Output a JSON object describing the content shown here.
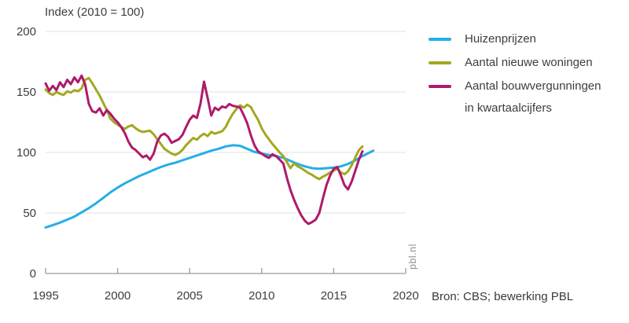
{
  "watermark": "pbl.nl",
  "source": "Bron: CBS; bewerking PBL",
  "colors": {
    "grid": "#e2e2e2",
    "axis": "#9c9c9c",
    "label": "#3d3d3d",
    "watermark": "#8f8f8f"
  },
  "chart_data": {
    "type": "line",
    "title": "Index (2010 = 100)",
    "xlabel": "",
    "ylabel": "",
    "xlim": [
      1995,
      2020
    ],
    "ylim": [
      0,
      200
    ],
    "x_ticks": [
      1995,
      2000,
      2005,
      2010,
      2015,
      2020
    ],
    "y_ticks": [
      0,
      50,
      100,
      150,
      200
    ],
    "grid": "horizontal",
    "legend_position": "right",
    "series": [
      {
        "name": "Huizenprijzen",
        "color": "#25aee6",
        "points": [
          [
            1995,
            38
          ],
          [
            1995.5,
            40
          ],
          [
            1996,
            42
          ],
          [
            1996.5,
            44.5
          ],
          [
            1997,
            47
          ],
          [
            1997.5,
            50.5
          ],
          [
            1998,
            54
          ],
          [
            1998.5,
            58
          ],
          [
            1999,
            62.5
          ],
          [
            1999.5,
            67
          ],
          [
            2000,
            71
          ],
          [
            2000.5,
            74.5
          ],
          [
            2001,
            77.5
          ],
          [
            2001.5,
            80.5
          ],
          [
            2002,
            83
          ],
          [
            2002.5,
            85.5
          ],
          [
            2003,
            88
          ],
          [
            2003.5,
            90
          ],
          [
            2004,
            91.5
          ],
          [
            2004.5,
            93.5
          ],
          [
            2005,
            95.5
          ],
          [
            2005.5,
            97.5
          ],
          [
            2006,
            99.5
          ],
          [
            2006.5,
            101.5
          ],
          [
            2007,
            103
          ],
          [
            2007.5,
            105
          ],
          [
            2008,
            106
          ],
          [
            2008.5,
            105.5
          ],
          [
            2009,
            103
          ],
          [
            2009.5,
            100.5
          ],
          [
            2010,
            99
          ],
          [
            2010.5,
            98
          ],
          [
            2011,
            97
          ],
          [
            2011.5,
            95.5
          ],
          [
            2012,
            93
          ],
          [
            2012.5,
            90.5
          ],
          [
            2013,
            88.5
          ],
          [
            2013.5,
            87
          ],
          [
            2014,
            86.5
          ],
          [
            2014.5,
            87
          ],
          [
            2015,
            87.5
          ],
          [
            2015.5,
            88.5
          ],
          [
            2016,
            90.5
          ],
          [
            2016.5,
            93.5
          ],
          [
            2017,
            97
          ],
          [
            2017.5,
            100
          ],
          [
            2017.75,
            101.5
          ]
        ]
      },
      {
        "name": "Aantal nieuwe woningen",
        "color": "#a3a820",
        "points": [
          [
            1995,
            152
          ],
          [
            1995.25,
            149
          ],
          [
            1995.5,
            147.5
          ],
          [
            1995.75,
            150
          ],
          [
            1996,
            148.5
          ],
          [
            1996.25,
            147.5
          ],
          [
            1996.5,
            150.5
          ],
          [
            1996.75,
            149.5
          ],
          [
            1997,
            151.5
          ],
          [
            1997.25,
            150.5
          ],
          [
            1997.5,
            153
          ],
          [
            1997.75,
            160
          ],
          [
            1998,
            161.5
          ],
          [
            1998.25,
            157
          ],
          [
            1998.5,
            152
          ],
          [
            1998.75,
            147
          ],
          [
            1999,
            141
          ],
          [
            1999.25,
            135
          ],
          [
            1999.5,
            128
          ],
          [
            1999.75,
            125
          ],
          [
            2000,
            123
          ],
          [
            2000.25,
            121
          ],
          [
            2000.5,
            119.5
          ],
          [
            2000.75,
            121.5
          ],
          [
            2001,
            122.5
          ],
          [
            2001.25,
            120
          ],
          [
            2001.5,
            118
          ],
          [
            2001.75,
            117
          ],
          [
            2002,
            117.5
          ],
          [
            2002.25,
            118
          ],
          [
            2002.5,
            115
          ],
          [
            2002.75,
            111
          ],
          [
            2003,
            107
          ],
          [
            2003.25,
            103
          ],
          [
            2003.5,
            101
          ],
          [
            2003.75,
            99
          ],
          [
            2004,
            98
          ],
          [
            2004.25,
            99.5
          ],
          [
            2004.5,
            102
          ],
          [
            2004.75,
            106
          ],
          [
            2005,
            109
          ],
          [
            2005.25,
            112
          ],
          [
            2005.5,
            110.5
          ],
          [
            2005.75,
            113.5
          ],
          [
            2006,
            115.5
          ],
          [
            2006.25,
            113.5
          ],
          [
            2006.5,
            117
          ],
          [
            2006.75,
            115.5
          ],
          [
            2007,
            116.5
          ],
          [
            2007.25,
            117.5
          ],
          [
            2007.5,
            121
          ],
          [
            2007.75,
            127
          ],
          [
            2008,
            132
          ],
          [
            2008.25,
            136
          ],
          [
            2008.5,
            139
          ],
          [
            2008.75,
            137
          ],
          [
            2009,
            139.5
          ],
          [
            2009.25,
            137.5
          ],
          [
            2009.5,
            132
          ],
          [
            2009.75,
            127
          ],
          [
            2010,
            120
          ],
          [
            2010.25,
            115
          ],
          [
            2010.5,
            111
          ],
          [
            2010.75,
            107
          ],
          [
            2011,
            103.5
          ],
          [
            2011.25,
            100
          ],
          [
            2011.5,
            97
          ],
          [
            2011.75,
            92
          ],
          [
            2012,
            87
          ],
          [
            2012.25,
            91
          ],
          [
            2012.5,
            88.5
          ],
          [
            2012.75,
            87
          ],
          [
            2013,
            85
          ],
          [
            2013.25,
            83
          ],
          [
            2013.5,
            81.5
          ],
          [
            2013.75,
            79.5
          ],
          [
            2014,
            78
          ],
          [
            2014.25,
            80
          ],
          [
            2014.5,
            81.5
          ],
          [
            2014.75,
            83.5
          ],
          [
            2015,
            85
          ],
          [
            2015.25,
            86.5
          ],
          [
            2015.5,
            83.5
          ],
          [
            2015.75,
            82
          ],
          [
            2016,
            84.5
          ],
          [
            2016.25,
            89.5
          ],
          [
            2016.5,
            96
          ],
          [
            2016.75,
            102
          ],
          [
            2017,
            105
          ]
        ]
      },
      {
        "name": "Aantal bouwvergunningen",
        "name_line2": "in kwartaalcijfers",
        "color": "#af1a6b",
        "points": [
          [
            1995,
            157
          ],
          [
            1995.25,
            151
          ],
          [
            1995.5,
            155
          ],
          [
            1995.75,
            151.5
          ],
          [
            1996,
            158
          ],
          [
            1996.25,
            154
          ],
          [
            1996.5,
            160
          ],
          [
            1996.75,
            156.5
          ],
          [
            1997,
            162
          ],
          [
            1997.25,
            158
          ],
          [
            1997.5,
            163.5
          ],
          [
            1997.75,
            156
          ],
          [
            1998,
            140
          ],
          [
            1998.25,
            134
          ],
          [
            1998.5,
            133
          ],
          [
            1998.75,
            136.5
          ],
          [
            1999,
            130.5
          ],
          [
            1999.25,
            135
          ],
          [
            1999.5,
            132
          ],
          [
            1999.75,
            128
          ],
          [
            2000,
            125
          ],
          [
            2000.25,
            121
          ],
          [
            2000.5,
            116
          ],
          [
            2000.75,
            109
          ],
          [
            2001,
            104
          ],
          [
            2001.25,
            102
          ],
          [
            2001.5,
            99
          ],
          [
            2001.75,
            96
          ],
          [
            2002,
            97.5
          ],
          [
            2002.25,
            94
          ],
          [
            2002.5,
            99
          ],
          [
            2002.75,
            109
          ],
          [
            2003,
            114
          ],
          [
            2003.25,
            115.5
          ],
          [
            2003.5,
            113
          ],
          [
            2003.75,
            108
          ],
          [
            2004,
            109.5
          ],
          [
            2004.25,
            111
          ],
          [
            2004.5,
            114.5
          ],
          [
            2004.75,
            121
          ],
          [
            2005,
            127
          ],
          [
            2005.25,
            130.5
          ],
          [
            2005.5,
            128.5
          ],
          [
            2005.75,
            140
          ],
          [
            2006,
            158.5
          ],
          [
            2006.25,
            145
          ],
          [
            2006.5,
            130.5
          ],
          [
            2006.75,
            137
          ],
          [
            2007,
            135
          ],
          [
            2007.25,
            138
          ],
          [
            2007.5,
            137
          ],
          [
            2007.75,
            140
          ],
          [
            2008,
            138.5
          ],
          [
            2008.25,
            138
          ],
          [
            2008.5,
            137
          ],
          [
            2008.75,
            131
          ],
          [
            2009,
            124
          ],
          [
            2009.25,
            114
          ],
          [
            2009.5,
            106
          ],
          [
            2009.75,
            101
          ],
          [
            2010,
            99
          ],
          [
            2010.25,
            97
          ],
          [
            2010.5,
            95.5
          ],
          [
            2010.75,
            98.5
          ],
          [
            2011,
            97
          ],
          [
            2011.25,
            94
          ],
          [
            2011.5,
            91
          ],
          [
            2011.75,
            79
          ],
          [
            2012,
            69
          ],
          [
            2012.25,
            61
          ],
          [
            2012.5,
            54
          ],
          [
            2012.75,
            48
          ],
          [
            2013,
            43.5
          ],
          [
            2013.25,
            41
          ],
          [
            2013.5,
            42.5
          ],
          [
            2013.75,
            44.5
          ],
          [
            2014,
            50
          ],
          [
            2014.25,
            62
          ],
          [
            2014.5,
            73
          ],
          [
            2014.75,
            81
          ],
          [
            2015,
            86.5
          ],
          [
            2015.25,
            88
          ],
          [
            2015.5,
            81
          ],
          [
            2015.75,
            73
          ],
          [
            2016,
            69.5
          ],
          [
            2016.25,
            76
          ],
          [
            2016.5,
            85
          ],
          [
            2016.75,
            94
          ],
          [
            2017,
            101
          ]
        ]
      }
    ]
  }
}
